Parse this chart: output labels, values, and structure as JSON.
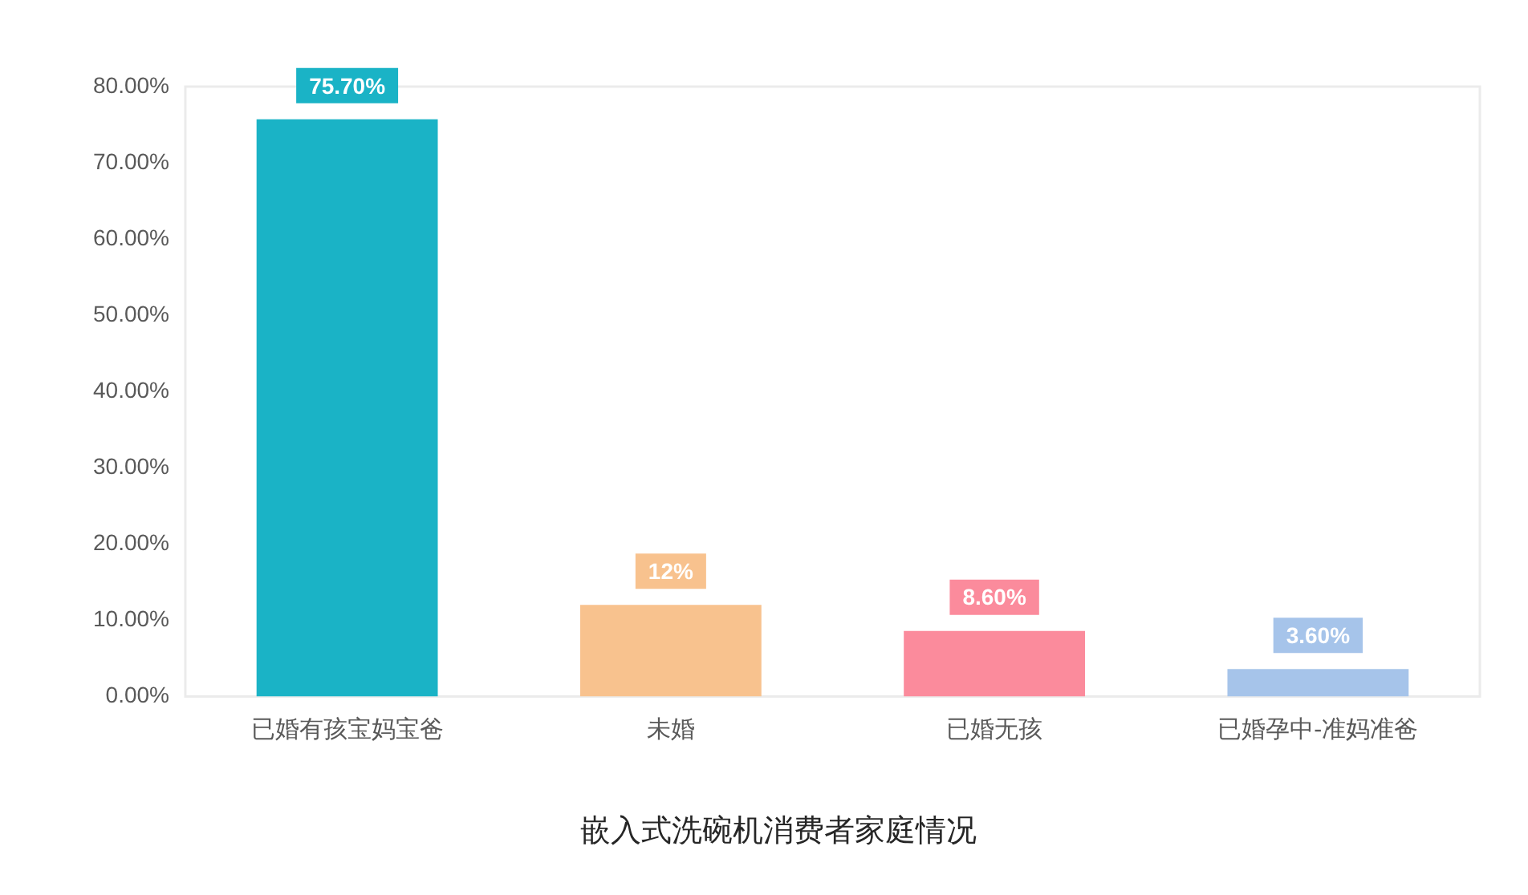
{
  "chart_data": {
    "type": "bar",
    "title": "嵌入式洗碗机消费者家庭情况",
    "categories": [
      "已婚有孩宝妈宝爸",
      "未婚",
      "已婚无孩",
      "已婚孕中-准妈准爸"
    ],
    "values": [
      75.7,
      12,
      8.6,
      3.6
    ],
    "colors": [
      "#1ab3c6",
      "#f8c28e",
      "#fb8b9c",
      "#a6c4ea"
    ],
    "value_labels": [
      "75.70%",
      "12%",
      "8.60%",
      "3.60%"
    ],
    "ylim": [
      0,
      80
    ],
    "yticks": [
      {
        "value": 0,
        "label": "0.00%"
      },
      {
        "value": 10,
        "label": "10.00%"
      },
      {
        "value": 20,
        "label": "20.00%"
      },
      {
        "value": 30,
        "label": "30.00%"
      },
      {
        "value": 40,
        "label": "40.00%"
      },
      {
        "value": 50,
        "label": "50.00%"
      },
      {
        "value": 60,
        "label": "60.00%"
      },
      {
        "value": 70,
        "label": "70.00%"
      },
      {
        "value": 80,
        "label": "80.00%"
      }
    ]
  }
}
